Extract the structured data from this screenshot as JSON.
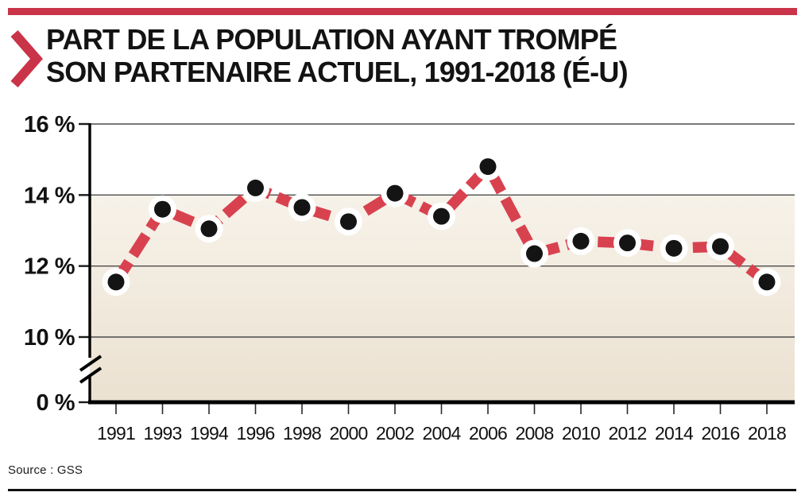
{
  "header": {
    "title_line1": "PART DE LA POPULATION AYANT TROMPÉ",
    "title_line2": "SON PARTENAIRE ACTUEL, 1991-2018 (É-U)"
  },
  "footer": {
    "source": "Source : GSS"
  },
  "theme": {
    "accent_color": "#ca3448",
    "line_color": "#d8424f",
    "marker_color": "#141414",
    "marker_halo_color": "#ffffff",
    "grid_color": "#4c4c4c",
    "axis_color": "#000000",
    "plot_bg_top": "#f7f2e9",
    "plot_bg_bottom": "#ebe1d1"
  },
  "chart_data": {
    "type": "line",
    "title": "Part de la population ayant trompé son partenaire actuel, 1991-2018 (É-U)",
    "xlabel": "",
    "ylabel": "",
    "unit": "%",
    "categories": [
      "1991",
      "1993",
      "1994",
      "1996",
      "1998",
      "2000",
      "2002",
      "2004",
      "2006",
      "2008",
      "2010",
      "2012",
      "2014",
      "2016",
      "2018"
    ],
    "values": [
      11.55,
      13.6,
      13.05,
      14.2,
      13.65,
      13.25,
      14.05,
      13.4,
      14.8,
      12.35,
      12.7,
      12.65,
      12.5,
      12.55,
      11.55
    ],
    "y_ticks": [
      16,
      14,
      12,
      10,
      0
    ],
    "y_tick_labels": [
      "16 %",
      "14 %",
      "12 %",
      "10 %",
      "0 %"
    ],
    "ylim_display": [
      10,
      16
    ],
    "axis_break": true,
    "grid": true,
    "legend": "none",
    "line_style": "dashed-thick",
    "marker": "dot-with-white-halo",
    "source": "GSS"
  }
}
